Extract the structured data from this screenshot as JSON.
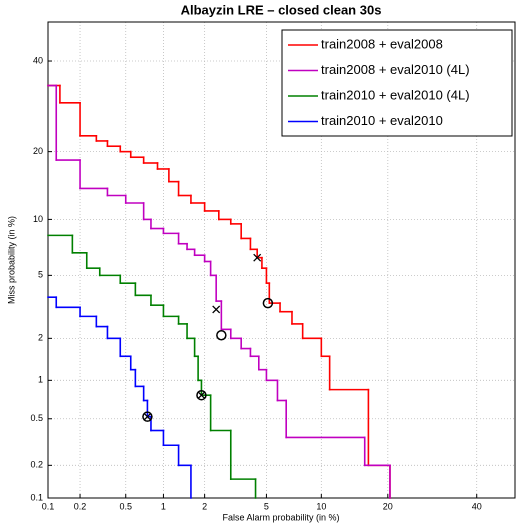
{
  "chart_data": {
    "type": "det",
    "title": "Albayzin LRE – closed clean 30s",
    "x_label": "False Alarm probability (in %)",
    "y_label": "Miss probability (in %)",
    "xlim": [
      0.1,
      50
    ],
    "ylim": [
      0.1,
      50
    ],
    "xticks": [
      0.1,
      0.2,
      0.5,
      1,
      2,
      5,
      10,
      20,
      40
    ],
    "yticks": [
      0.1,
      0.2,
      0.5,
      1,
      2,
      5,
      10,
      20,
      40
    ],
    "grid": true,
    "legend": "upper right",
    "series": [
      {
        "name": "train2008 + eval2008",
        "color": "#ff0000",
        "x": [
          0.1,
          0.13,
          0.2,
          0.28,
          0.35,
          0.45,
          0.55,
          0.7,
          0.9,
          1.1,
          1.3,
          1.6,
          2,
          2.5,
          3,
          3.5,
          4,
          4.4,
          4.7,
          5,
          5.2,
          6,
          7,
          8,
          10,
          11,
          16.6,
          20.4
        ],
        "values": [
          34,
          30,
          23,
          22,
          21,
          20,
          19,
          18,
          17,
          15,
          13,
          12,
          11,
          10,
          9.5,
          8,
          7,
          6.3,
          5.5,
          4.5,
          3.4,
          3,
          2.5,
          2,
          1.5,
          0.85,
          0.2,
          0.1
        ],
        "cross": [
          4.4,
          6.3
        ],
        "circle": [
          5.1,
          3.4
        ]
      },
      {
        "name": "train2008 + eval2010 (4L)",
        "color": "#c000c0",
        "x": [
          0.1,
          0.12,
          0.2,
          0.35,
          0.5,
          0.7,
          0.8,
          1,
          1.3,
          1.5,
          1.7,
          2,
          2.2,
          2.4,
          2.6,
          3,
          3.5,
          4,
          4.5,
          5,
          5.8,
          6.5,
          16,
          20.4
        ],
        "values": [
          34,
          18.5,
          14,
          13,
          12,
          10,
          9,
          8.5,
          7.5,
          7,
          6.5,
          6,
          5,
          3.5,
          2.3,
          2,
          1.7,
          1.5,
          1.2,
          1,
          0.7,
          0.35,
          0.2,
          0.1
        ],
        "cross": [
          2.4,
          3.1
        ],
        "circle": [
          2.6,
          2.1
        ]
      },
      {
        "name": "train2010 + eval2010 (4L)",
        "color": "#008000",
        "x": [
          0.1,
          0.17,
          0.23,
          0.3,
          0.45,
          0.6,
          0.8,
          1,
          1.3,
          1.5,
          1.7,
          1.8,
          1.9,
          2.2,
          3,
          4.3
        ],
        "values": [
          8.3,
          6.7,
          5.5,
          5,
          4.5,
          3.8,
          3.3,
          2.8,
          2.5,
          2,
          1.5,
          1,
          0.77,
          0.4,
          0.15,
          0.1
        ],
        "cross": [
          1.9,
          0.77
        ],
        "circle": [
          1.9,
          0.77
        ]
      },
      {
        "name": "train2010 + eval2010",
        "color": "#0000ff",
        "x": [
          0.1,
          0.12,
          0.2,
          0.28,
          0.35,
          0.45,
          0.55,
          0.6,
          0.7,
          0.75,
          0.8,
          1,
          1.3,
          1.6
        ],
        "values": [
          3.7,
          3.2,
          2.8,
          2.4,
          2,
          1.5,
          1.2,
          0.9,
          0.7,
          0.52,
          0.4,
          0.3,
          0.2,
          0.1
        ],
        "cross": [
          0.75,
          0.52
        ],
        "circle": [
          0.75,
          0.52
        ]
      }
    ]
  }
}
